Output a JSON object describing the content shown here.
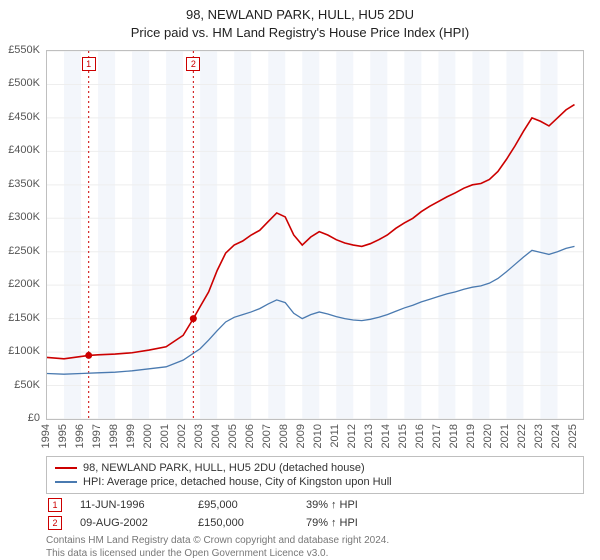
{
  "title_line1": "98, NEWLAND PARK, HULL, HU5 2DU",
  "title_line2": "Price paid vs. HM Land Registry's House Price Index (HPI)",
  "chart": {
    "type": "line",
    "background_color": "#ffffff",
    "border_color": "#bfbfbf",
    "grid_color": "#eeeeee",
    "band_color": "#f3f6fb",
    "sale_line_color": "#cc0000",
    "sale_line_dash": "2,3",
    "xlim": [
      1994,
      2025.5
    ],
    "x_ticks": [
      1994,
      1995,
      1996,
      1997,
      1998,
      1999,
      2000,
      2001,
      2002,
      2003,
      2004,
      2005,
      2006,
      2007,
      2008,
      2009,
      2010,
      2011,
      2012,
      2013,
      2014,
      2015,
      2016,
      2017,
      2018,
      2019,
      2020,
      2021,
      2022,
      2023,
      2024,
      2025
    ],
    "ylim": [
      0,
      550000
    ],
    "y_ticks": [
      0,
      50000,
      100000,
      150000,
      200000,
      250000,
      300000,
      350000,
      400000,
      450000,
      500000,
      550000
    ],
    "y_tick_labels": [
      "£0",
      "£50K",
      "£100K",
      "£150K",
      "£200K",
      "£250K",
      "£300K",
      "£350K",
      "£400K",
      "£450K",
      "£500K",
      "£550K"
    ],
    "series": [
      {
        "label": "98, NEWLAND PARK, HULL, HU5 2DU (detached house)",
        "color": "#cc0000",
        "line_width": 1.6,
        "points": [
          [
            1994,
            92000
          ],
          [
            1995,
            90000
          ],
          [
            1996.45,
            95000
          ],
          [
            1997,
            96000
          ],
          [
            1998,
            97000
          ],
          [
            1999,
            99000
          ],
          [
            2000,
            103000
          ],
          [
            2001,
            108000
          ],
          [
            2002,
            125000
          ],
          [
            2002.6,
            150000
          ],
          [
            2003,
            168000
          ],
          [
            2003.5,
            190000
          ],
          [
            2004,
            222000
          ],
          [
            2004.5,
            248000
          ],
          [
            2005,
            260000
          ],
          [
            2005.5,
            266000
          ],
          [
            2006,
            275000
          ],
          [
            2006.5,
            282000
          ],
          [
            2007,
            295000
          ],
          [
            2007.5,
            308000
          ],
          [
            2008,
            302000
          ],
          [
            2008.5,
            275000
          ],
          [
            2009,
            260000
          ],
          [
            2009.5,
            272000
          ],
          [
            2010,
            280000
          ],
          [
            2010.5,
            275000
          ],
          [
            2011,
            268000
          ],
          [
            2011.5,
            263000
          ],
          [
            2012,
            260000
          ],
          [
            2012.5,
            258000
          ],
          [
            2013,
            262000
          ],
          [
            2013.5,
            268000
          ],
          [
            2014,
            275000
          ],
          [
            2014.5,
            285000
          ],
          [
            2015,
            293000
          ],
          [
            2015.5,
            300000
          ],
          [
            2016,
            310000
          ],
          [
            2016.5,
            318000
          ],
          [
            2017,
            325000
          ],
          [
            2017.5,
            332000
          ],
          [
            2018,
            338000
          ],
          [
            2018.5,
            345000
          ],
          [
            2019,
            350000
          ],
          [
            2019.5,
            352000
          ],
          [
            2020,
            358000
          ],
          [
            2020.5,
            370000
          ],
          [
            2021,
            388000
          ],
          [
            2021.5,
            408000
          ],
          [
            2022,
            430000
          ],
          [
            2022.5,
            450000
          ],
          [
            2023,
            445000
          ],
          [
            2023.5,
            438000
          ],
          [
            2024,
            450000
          ],
          [
            2024.5,
            462000
          ],
          [
            2025,
            470000
          ]
        ]
      },
      {
        "label": "HPI: Average price, detached house, City of Kingston upon Hull",
        "color": "#4a7ab0",
        "line_width": 1.3,
        "points": [
          [
            1994,
            68000
          ],
          [
            1995,
            67000
          ],
          [
            1996,
            68000
          ],
          [
            1997,
            69000
          ],
          [
            1998,
            70000
          ],
          [
            1999,
            72000
          ],
          [
            2000,
            75000
          ],
          [
            2001,
            78000
          ],
          [
            2002,
            88000
          ],
          [
            2003,
            105000
          ],
          [
            2003.5,
            118000
          ],
          [
            2004,
            132000
          ],
          [
            2004.5,
            145000
          ],
          [
            2005,
            152000
          ],
          [
            2005.5,
            156000
          ],
          [
            2006,
            160000
          ],
          [
            2006.5,
            165000
          ],
          [
            2007,
            172000
          ],
          [
            2007.5,
            178000
          ],
          [
            2008,
            174000
          ],
          [
            2008.5,
            158000
          ],
          [
            2009,
            150000
          ],
          [
            2009.5,
            156000
          ],
          [
            2010,
            160000
          ],
          [
            2010.5,
            157000
          ],
          [
            2011,
            153000
          ],
          [
            2011.5,
            150000
          ],
          [
            2012,
            148000
          ],
          [
            2012.5,
            147000
          ],
          [
            2013,
            149000
          ],
          [
            2013.5,
            152000
          ],
          [
            2014,
            156000
          ],
          [
            2014.5,
            161000
          ],
          [
            2015,
            166000
          ],
          [
            2015.5,
            170000
          ],
          [
            2016,
            175000
          ],
          [
            2016.5,
            179000
          ],
          [
            2017,
            183000
          ],
          [
            2017.5,
            187000
          ],
          [
            2018,
            190000
          ],
          [
            2018.5,
            194000
          ],
          [
            2019,
            197000
          ],
          [
            2019.5,
            199000
          ],
          [
            2020,
            203000
          ],
          [
            2020.5,
            210000
          ],
          [
            2021,
            220000
          ],
          [
            2021.5,
            231000
          ],
          [
            2022,
            242000
          ],
          [
            2022.5,
            252000
          ],
          [
            2023,
            249000
          ],
          [
            2023.5,
            246000
          ],
          [
            2024,
            250000
          ],
          [
            2024.5,
            255000
          ],
          [
            2025,
            258000
          ]
        ]
      }
    ],
    "sales": [
      {
        "n": "1",
        "x": 1996.45,
        "price": 95000,
        "date": "11-JUN-1996",
        "price_label": "£95,000",
        "hpi_pct": "39%",
        "hpi_suffix": "HPI"
      },
      {
        "n": "2",
        "x": 2002.6,
        "price": 150000,
        "date": "09-AUG-2002",
        "price_label": "£150,000",
        "hpi_pct": "79%",
        "hpi_suffix": "HPI"
      }
    ]
  },
  "footer": {
    "line1": "Contains HM Land Registry data © Crown copyright and database right 2024.",
    "line2": "This data is licensed under the Open Government Licence v3.0."
  },
  "arrow_glyph": "↑"
}
